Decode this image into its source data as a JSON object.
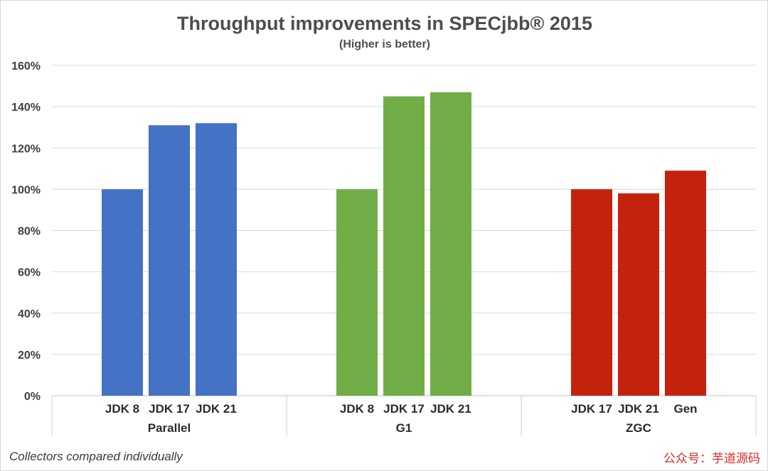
{
  "chart_data": {
    "type": "bar",
    "title": "Throughput improvements in SPECjbb® 2015",
    "subtitle": "(Higher is better)",
    "ylim": [
      0,
      160
    ],
    "y_ticks": [
      "0%",
      "20%",
      "40%",
      "60%",
      "80%",
      "100%",
      "120%",
      "140%",
      "160%"
    ],
    "grid": true,
    "legend": "none",
    "groups": [
      {
        "name": "Parallel",
        "color": "#4472c4",
        "categories": [
          "JDK 8",
          "JDK 17",
          "JDK 21"
        ],
        "values": [
          100,
          131,
          132
        ]
      },
      {
        "name": "G1",
        "color": "#70ad47",
        "categories": [
          "JDK 8",
          "JDK 17",
          "JDK 21"
        ],
        "values": [
          100,
          145,
          147
        ]
      },
      {
        "name": "ZGC",
        "color": "#c5220e",
        "categories": [
          "JDK 17",
          "JDK 21",
          "Gen"
        ],
        "values": [
          100,
          98,
          109
        ]
      }
    ]
  },
  "footnote": "Collectors compared individually",
  "watermark": "公众号：芋道源码"
}
